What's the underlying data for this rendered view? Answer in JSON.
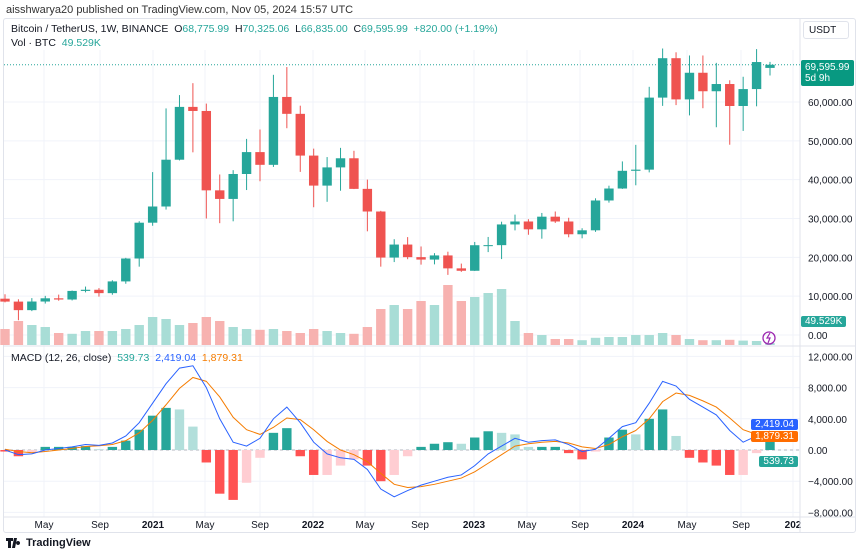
{
  "published": "aisshwarya20 published on TradingView.com, Nov 05, 2024 15:57 UTC",
  "symbol": {
    "title": "Bitcoin / TetherUS, 1W, BINANCE",
    "o_label": "O",
    "o": "68,775.99",
    "h_label": "H",
    "h": "70,325.06",
    "l_label": "L",
    "l": "66,835.00",
    "c_label": "C",
    "c": "69,595.99",
    "change": "+820.00 (+1.19%)"
  },
  "volume": {
    "label": "Vol · BTC",
    "value": "49.529K"
  },
  "macd": {
    "label": "MACD (12, 26, close)",
    "hist": "539.73",
    "macd": "2,419.04",
    "signal": "1,879.31"
  },
  "currency": "USDT",
  "price_tag": {
    "price": "69,595.99",
    "countdown": "5d 9h"
  },
  "footer": "TradingView",
  "colors": {
    "up": "#26a69a",
    "down": "#ef5350",
    "macd": "#2962ff",
    "signal": "#f57c00",
    "hist_up": "#26a69a",
    "hist_down": "#ff5252"
  },
  "chart_data": {
    "type": "candlestick",
    "interval": "1W (sampled monthly estimates)",
    "price_axis": {
      "ticks": [
        0,
        10000,
        20000,
        30000,
        40000,
        50000,
        60000
      ],
      "labels": [
        "0.00",
        "10,000.00",
        "20,000.00",
        "30,000.00",
        "40,000.00",
        "50,000.00",
        "60,000.00"
      ],
      "range": [
        0,
        76000
      ]
    },
    "macd_axis": {
      "ticks": [
        12000,
        8000,
        4000,
        0,
        -4000,
        -8000
      ],
      "labels": [
        "12,000.00",
        "8,000.00",
        "4,000.00",
        "0.00",
        "−4,000.00",
        "−8,000.00"
      ],
      "range": [
        -9000,
        13000
      ]
    },
    "time_labels": [
      "May",
      "Sep",
      "2021",
      "May",
      "Sep",
      "2022",
      "May",
      "Sep",
      "2023",
      "May",
      "Sep",
      "2024",
      "May",
      "Sep",
      "202"
    ],
    "months": [
      "2020-02",
      "2020-03",
      "2020-04",
      "2020-05",
      "2020-06",
      "2020-07",
      "2020-08",
      "2020-09",
      "2020-10",
      "2020-11",
      "2020-12",
      "2021-01",
      "2021-02",
      "2021-03",
      "2021-04",
      "2021-05",
      "2021-06",
      "2021-07",
      "2021-08",
      "2021-09",
      "2021-10",
      "2021-11",
      "2021-12",
      "2022-01",
      "2022-02",
      "2022-03",
      "2022-04",
      "2022-05",
      "2022-06",
      "2022-07",
      "2022-08",
      "2022-09",
      "2022-10",
      "2022-11",
      "2022-12",
      "2023-01",
      "2023-02",
      "2023-03",
      "2023-04",
      "2023-05",
      "2023-06",
      "2023-07",
      "2023-08",
      "2023-09",
      "2023-10",
      "2023-11",
      "2023-12",
      "2024-01",
      "2024-02",
      "2024-03",
      "2024-04",
      "2024-05",
      "2024-06",
      "2024-07",
      "2024-08",
      "2024-09",
      "2024-10",
      "2024-11"
    ],
    "ohlc": [
      [
        9350,
        10500,
        8400,
        8600
      ],
      [
        8600,
        9200,
        3800,
        6400
      ],
      [
        6400,
        9500,
        6150,
        8620
      ],
      [
        8620,
        10080,
        8100,
        9450
      ],
      [
        9450,
        10400,
        8830,
        9135
      ],
      [
        9135,
        11450,
        8900,
        11350
      ],
      [
        11350,
        12470,
        10980,
        11650
      ],
      [
        11650,
        12070,
        9880,
        10780
      ],
      [
        10780,
        14100,
        10370,
        13800
      ],
      [
        13800,
        19870,
        13200,
        19700
      ],
      [
        19700,
        29300,
        17600,
        28920
      ],
      [
        28920,
        41950,
        28130,
        33090
      ],
      [
        33090,
        58350,
        32300,
        45140
      ],
      [
        45140,
        61780,
        44960,
        58740
      ],
      [
        58740,
        64850,
        47040,
        57690
      ],
      [
        57690,
        59590,
        30000,
        37250
      ],
      [
        37250,
        41330,
        28800,
        35040
      ],
      [
        35040,
        42450,
        29280,
        41460
      ],
      [
        41460,
        50500,
        37330,
        47100
      ],
      [
        47100,
        52920,
        39600,
        43820
      ],
      [
        43820,
        67000,
        43280,
        61300
      ],
      [
        61300,
        69000,
        53250,
        56950
      ],
      [
        56950,
        59050,
        42000,
        46200
      ],
      [
        46200,
        47990,
        32900,
        38470
      ],
      [
        38470,
        45820,
        34300,
        43160
      ],
      [
        43160,
        48190,
        37150,
        45510
      ],
      [
        45510,
        47440,
        37580,
        37630
      ],
      [
        37630,
        40020,
        26700,
        31800
      ],
      [
        31800,
        31980,
        17600,
        19940
      ],
      [
        19940,
        24670,
        18780,
        23290
      ],
      [
        23290,
        25210,
        19520,
        20050
      ],
      [
        20050,
        22800,
        18120,
        19420
      ],
      [
        19420,
        21080,
        18190,
        20490
      ],
      [
        20490,
        21450,
        15480,
        17160
      ],
      [
        17160,
        18390,
        16260,
        16540
      ],
      [
        16540,
        23960,
        16500,
        23120
      ],
      [
        23120,
        25250,
        21350,
        23140
      ],
      [
        23140,
        29180,
        19550,
        28470
      ],
      [
        28470,
        31000,
        26940,
        29230
      ],
      [
        29230,
        29820,
        25810,
        27210
      ],
      [
        27210,
        31430,
        24800,
        30470
      ],
      [
        30470,
        31800,
        28860,
        29230
      ],
      [
        29230,
        30190,
        25160,
        25940
      ],
      [
        25940,
        27490,
        24900,
        26960
      ],
      [
        26960,
        35200,
        26560,
        34640
      ],
      [
        34640,
        38450,
        34090,
        37720
      ],
      [
        37720,
        44700,
        37620,
        42280
      ],
      [
        42280,
        48970,
        38550,
        42580
      ],
      [
        42580,
        63910,
        41880,
        61130
      ],
      [
        61130,
        73780,
        59000,
        71280
      ],
      [
        71280,
        72800,
        59200,
        60670
      ],
      [
        60670,
        71980,
        56550,
        67530
      ],
      [
        67530,
        71980,
        58400,
        62770
      ],
      [
        62770,
        70080,
        53500,
        64630
      ],
      [
        64630,
        65600,
        49000,
        58970
      ],
      [
        58970,
        66500,
        52550,
        63330
      ],
      [
        63330,
        73620,
        58890,
        70290
      ],
      [
        68776,
        70325,
        66835,
        69596
      ]
    ],
    "volume_k": [
      400,
      600,
      500,
      450,
      300,
      280,
      350,
      350,
      350,
      400,
      500,
      700,
      650,
      500,
      550,
      700,
      600,
      450,
      400,
      380,
      400,
      350,
      300,
      400,
      350,
      300,
      280,
      450,
      900,
      1000,
      900,
      1100,
      1000,
      1500,
      1100,
      1200,
      1300,
      1400,
      600,
      300,
      250,
      150,
      150,
      120,
      180,
      200,
      200,
      250,
      250,
      300,
      250,
      150,
      120,
      120,
      130,
      110,
      100,
      50
    ],
    "macd_values": [
      0,
      -600,
      -500,
      0,
      200,
      400,
      700,
      600,
      900,
      1800,
      3500,
      6000,
      8500,
      10500,
      10800,
      8000,
      4000,
      1000,
      500,
      1500,
      4000,
      5500,
      3500,
      1000,
      -500,
      -1000,
      -1200,
      -2500,
      -5000,
      -6000,
      -5200,
      -4500,
      -4000,
      -3500,
      -3200,
      -2000,
      -500,
      500,
      1500,
      1000,
      1200,
      1300,
      700,
      -200,
      100,
      1500,
      3000,
      3500,
      6000,
      8800,
      8200,
      6500,
      5500,
      4500,
      2500,
      1000,
      1800,
      2419
    ],
    "signal_values": [
      100,
      -200,
      -350,
      -200,
      0,
      200,
      450,
      550,
      700,
      1200,
      2200,
      3800,
      5800,
      7900,
      9300,
      8800,
      6800,
      4200,
      2600,
      2000,
      2900,
      4100,
      3900,
      2600,
      1100,
      0,
      -600,
      -1500,
      -3000,
      -4400,
      -4800,
      -4700,
      -4400,
      -4000,
      -3600,
      -2800,
      -1700,
      -600,
      500,
      800,
      1000,
      1100,
      900,
      400,
      200,
      700,
      1700,
      2500,
      4000,
      6200,
      7300,
      7000,
      6300,
      5500,
      4100,
      2600,
      2000,
      1879
    ]
  }
}
